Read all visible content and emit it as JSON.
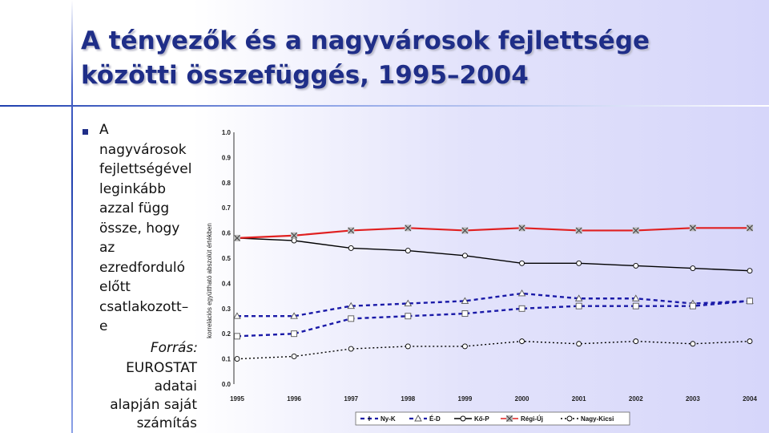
{
  "slide": {
    "title": "A tényezők és a nagyvárosok fejlettsége közötti összefüggés, 1995–2004",
    "bullet": "A\nnagyvárosok\nfejlettségével\nleginkább\nazzal függ\nössze, hogy\naz\nezredforduló\nelőtt\ncsatlakozott–\ne",
    "source_label": "Forrás:",
    "source_text": "EUROSTAT\nadatai\nalapján saját\nszámítás"
  },
  "chart_data": {
    "type": "line",
    "title": "",
    "ylabel": "korrelációs együttható abszolút értékben",
    "xlabel": "",
    "ylim": [
      0.0,
      1.0
    ],
    "yticks": [
      "0.0",
      "0.1",
      "0.2",
      "0.3",
      "0.4",
      "0.5",
      "0.6",
      "0.7",
      "0.8",
      "0.9",
      "1.0"
    ],
    "categories": [
      "1995",
      "1996",
      "1997",
      "1998",
      "1999",
      "2000",
      "2001",
      "2002",
      "2003",
      "2004"
    ],
    "grid": false,
    "legend_position": "bottom",
    "series": [
      {
        "name": "Ny-K",
        "legend_marker": "I",
        "color": "#1a1aa8",
        "dash": "dash",
        "marker": "none",
        "values": [
          null,
          null,
          null,
          null,
          null,
          null,
          null,
          null,
          null,
          null
        ]
      },
      {
        "name": "É-D",
        "legend_marker": "^",
        "color": "#1a1aa8",
        "dash": "dash",
        "marker": "triangle",
        "values": [
          0.27,
          0.27,
          0.31,
          0.32,
          0.33,
          0.36,
          0.34,
          0.34,
          0.32,
          0.33
        ]
      },
      {
        "name": "",
        "color": "#1a1aa8",
        "dash": "dash",
        "marker": "square",
        "values": [
          0.19,
          0.2,
          0.26,
          0.27,
          0.28,
          0.3,
          0.31,
          0.31,
          0.31,
          0.33
        ]
      },
      {
        "name": "Kő-P",
        "legend_marker": "o",
        "color": "#000000",
        "dash": "solid",
        "marker": "circle",
        "values": [
          0.58,
          0.57,
          0.54,
          0.53,
          0.51,
          0.48,
          0.48,
          0.47,
          0.46,
          0.45
        ]
      },
      {
        "name": "Régi-Új",
        "legend_marker": "x",
        "color": "#e02020",
        "dash": "solid",
        "marker": "x",
        "values": [
          0.58,
          0.59,
          0.61,
          0.62,
          0.61,
          0.62,
          0.61,
          0.61,
          0.62,
          0.62
        ]
      },
      {
        "name": "Nagy-Kicsi",
        "legend_marker": "o",
        "color": "#000000",
        "dash": "dot",
        "marker": "circle",
        "values": [
          0.1,
          0.11,
          0.14,
          0.15,
          0.15,
          0.17,
          0.16,
          0.17,
          0.16,
          0.17
        ]
      }
    ]
  }
}
